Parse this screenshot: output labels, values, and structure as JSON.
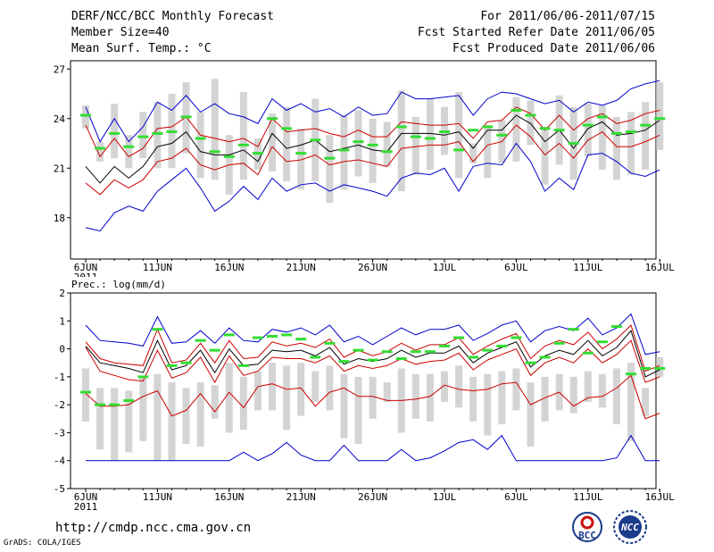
{
  "header": {
    "title": "DERF/NCC/BCC Monthly Forecast",
    "member_size": "Member Size=40",
    "variable": "Mean Surf. Temp.: °C",
    "period": "For 2011/06/06-2011/07/15",
    "start_date": "Fcst Started Refer Date 2011/06/05",
    "produced_date": "Fcst Produced Date 2011/06/06"
  },
  "footer": {
    "url": "http://cmdp.ncc.cma.gov.cn",
    "credit": "GrADS: COLA/IGES",
    "logo_left": "BCC",
    "logo_right": "NCC"
  },
  "colors": {
    "envelope": "#0000cc",
    "spread": "#cc0000",
    "mean": "#000000",
    "obs": "#33dd33",
    "bar": "#d4d4d4"
  },
  "chart_data": [
    {
      "id": "temp",
      "type": "line",
      "title": "Mean Surf. Temp.: °C",
      "ylim": [
        15.5,
        27.5
      ],
      "yticks": [
        18,
        21,
        24,
        27
      ],
      "x_ticks": [
        {
          "day": 0,
          "label": "6JUN"
        },
        {
          "day": 5,
          "label": "11JUN"
        },
        {
          "day": 10,
          "label": "16JUN"
        },
        {
          "day": 15,
          "label": "21JUN"
        },
        {
          "day": 20,
          "label": "26JUN"
        },
        {
          "day": 25,
          "label": "1JUL"
        },
        {
          "day": 30,
          "label": "6JUL"
        },
        {
          "day": 35,
          "label": "11JUL"
        },
        {
          "day": 40,
          "label": "16JUL"
        }
      ],
      "year_label": "2011",
      "series": [
        {
          "name": "max",
          "role": "envelope",
          "values": [
            24.7,
            22.6,
            24.0,
            22.6,
            23.5,
            25.0,
            24.5,
            25.4,
            24.4,
            24.9,
            24.3,
            24.1,
            23.7,
            25.2,
            24.5,
            24.9,
            24.4,
            24.6,
            24.1,
            24.7,
            24.2,
            24.3,
            25.6,
            25.2,
            25.2,
            25.3,
            25.4,
            24.2,
            25.2,
            25.6,
            25.5,
            25.2,
            24.9,
            25.1,
            24.4,
            25.0,
            24.8,
            25.1,
            25.8,
            26.1,
            26.3
          ]
        },
        {
          "name": "upper",
          "role": "spread",
          "values": [
            23.6,
            21.7,
            22.8,
            21.7,
            22.2,
            23.4,
            23.5,
            24.1,
            23.0,
            22.8,
            22.6,
            22.8,
            22.3,
            24.0,
            23.2,
            23.3,
            23.4,
            23.1,
            22.9,
            23.3,
            22.9,
            22.9,
            23.8,
            23.7,
            23.6,
            23.6,
            23.7,
            22.8,
            23.8,
            23.9,
            24.7,
            24.3,
            23.3,
            24.2,
            23.3,
            24.0,
            24.3,
            23.7,
            23.9,
            24.3,
            24.5
          ]
        },
        {
          "name": "mean",
          "role": "mean",
          "values": [
            21.1,
            20.1,
            21.1,
            20.4,
            21.1,
            22.3,
            22.5,
            23.2,
            22.0,
            21.8,
            21.8,
            22.1,
            21.4,
            23.1,
            22.2,
            22.4,
            22.7,
            22.0,
            22.2,
            22.4,
            22.1,
            22.0,
            23.1,
            23.1,
            23.1,
            23.0,
            23.2,
            22.2,
            23.3,
            23.3,
            24.2,
            23.7,
            22.6,
            23.3,
            22.2,
            23.4,
            23.8,
            23.0,
            23.1,
            23.3,
            23.9
          ]
        },
        {
          "name": "lower",
          "role": "spread",
          "values": [
            20.1,
            19.4,
            20.3,
            19.8,
            20.3,
            21.4,
            21.6,
            22.2,
            21.2,
            20.9,
            21.2,
            21.3,
            20.6,
            22.3,
            21.4,
            21.5,
            21.8,
            21.2,
            21.4,
            21.5,
            21.3,
            21.1,
            22.2,
            22.3,
            22.4,
            22.4,
            22.6,
            21.4,
            22.4,
            22.6,
            23.6,
            22.9,
            21.8,
            22.5,
            21.6,
            22.7,
            23.2,
            22.3,
            22.3,
            22.6,
            23.0
          ]
        },
        {
          "name": "min",
          "role": "envelope",
          "values": [
            17.4,
            17.2,
            18.3,
            18.7,
            18.4,
            19.6,
            20.3,
            21.0,
            19.8,
            18.4,
            19.0,
            19.9,
            19.1,
            20.4,
            19.6,
            20.0,
            20.1,
            19.6,
            20.0,
            19.8,
            19.6,
            19.3,
            20.4,
            20.7,
            20.6,
            21.0,
            19.6,
            21.1,
            21.3,
            21.2,
            22.5,
            21.4,
            19.6,
            20.4,
            19.7,
            21.8,
            21.9,
            21.4,
            20.7,
            20.5,
            20.9
          ]
        }
      ],
      "bars": {
        "low": [
          23.4,
          21.4,
          21.6,
          21.0,
          21.6,
          21.0,
          21.0,
          21.9,
          20.4,
          20.3,
          19.4,
          20.3,
          20.9,
          20.8,
          20.2,
          19.7,
          20.2,
          18.9,
          19.7,
          20.5,
          20.1,
          21.1,
          19.6,
          20.6,
          20.9,
          21.8,
          20.4,
          21.3,
          20.4,
          21.3,
          21.4,
          22.4,
          20.0,
          21.2,
          20.3,
          21.7,
          20.9,
          20.3,
          20.6,
          20.9,
          22.1
        ],
        "high": [
          24.8,
          22.6,
          24.9,
          23.0,
          24.4,
          25.0,
          25.5,
          26.2,
          24.4,
          26.4,
          23.0,
          25.6,
          22.8,
          24.3,
          24.7,
          23.4,
          25.2,
          23.0,
          24.2,
          24.5,
          24.0,
          23.8,
          25.7,
          24.1,
          25.2,
          24.7,
          25.6,
          22.5,
          23.6,
          23.9,
          25.3,
          25.1,
          23.5,
          25.4,
          24.7,
          24.9,
          24.8,
          24.1,
          24.4,
          25.0,
          26.2
        ]
      },
      "observed": [
        24.2,
        22.2,
        23.1,
        22.3,
        22.9,
        23.1,
        23.2,
        24.1,
        22.8,
        22.0,
        21.7,
        22.4,
        21.9,
        24.0,
        23.4,
        21.9,
        22.7,
        21.6,
        22.1,
        22.6,
        22.4,
        22.0,
        23.5,
        22.9,
        22.8,
        23.2,
        22.1,
        23.3,
        23.5,
        23.0,
        24.5,
        24.2,
        23.4,
        23.3,
        22.5,
        23.6,
        24.1,
        23.1,
        23.2,
        23.6,
        24.0
      ]
    },
    {
      "id": "prec",
      "type": "line",
      "title": "Prec.: log(mm/d)",
      "ylim": [
        -5,
        2
      ],
      "yticks": [
        -5,
        -4,
        -3,
        -2,
        -1,
        0,
        1,
        2
      ],
      "x_ticks": [
        {
          "day": 0,
          "label": "6JUN"
        },
        {
          "day": 5,
          "label": "11JUN"
        },
        {
          "day": 10,
          "label": "16JUN"
        },
        {
          "day": 15,
          "label": "21JUN"
        },
        {
          "day": 20,
          "label": "26JUN"
        },
        {
          "day": 25,
          "label": "1JUL"
        },
        {
          "day": 30,
          "label": "6JUL"
        },
        {
          "day": 35,
          "label": "11JUL"
        },
        {
          "day": 40,
          "label": "16JUL"
        }
      ],
      "year_label": "2011",
      "series": [
        {
          "name": "max",
          "role": "envelope",
          "values": [
            0.85,
            0.3,
            0.25,
            0.2,
            0.1,
            1.15,
            0.2,
            0.25,
            0.65,
            0.2,
            0.75,
            0.3,
            0.25,
            0.7,
            0.6,
            0.75,
            0.5,
            0.85,
            0.25,
            0.45,
            0.15,
            0.45,
            0.75,
            0.5,
            0.7,
            0.7,
            0.85,
            0.3,
            0.55,
            0.85,
            1.0,
            0.25,
            0.65,
            0.8,
            0.65,
            1.1,
            0.5,
            0.75,
            1.25,
            -0.2,
            -0.1
          ]
        },
        {
          "name": "upper",
          "role": "spread",
          "values": [
            0.25,
            -0.35,
            -0.5,
            -0.55,
            -0.6,
            0.7,
            -0.5,
            -0.4,
            0.2,
            -0.5,
            0.3,
            -0.35,
            -0.3,
            0.25,
            0.1,
            0.2,
            0.05,
            0.35,
            -0.3,
            -0.05,
            -0.25,
            -0.1,
            0.2,
            -0.05,
            0.15,
            0.15,
            0.4,
            -0.2,
            0.1,
            0.35,
            0.55,
            -0.35,
            0.1,
            0.3,
            0.15,
            0.6,
            0.0,
            0.35,
            0.85,
            -0.8,
            -0.6
          ]
        },
        {
          "name": "mean",
          "role": "mean",
          "values": [
            0.1,
            -0.5,
            -0.6,
            -0.7,
            -0.85,
            0.3,
            -0.75,
            -0.6,
            -0.05,
            -0.85,
            0.0,
            -0.6,
            -0.55,
            -0.05,
            -0.1,
            -0.05,
            -0.25,
            0.05,
            -0.55,
            -0.35,
            -0.45,
            -0.35,
            -0.05,
            -0.3,
            -0.15,
            -0.15,
            0.1,
            -0.5,
            -0.15,
            0.05,
            0.25,
            -0.65,
            -0.25,
            -0.05,
            -0.2,
            0.3,
            -0.25,
            0.05,
            0.65,
            -1.0,
            -0.75
          ]
        },
        {
          "name": "lower",
          "role": "spread",
          "values": [
            0.05,
            -0.8,
            -0.95,
            -1.1,
            -1.15,
            -0.05,
            -1.05,
            -0.85,
            -0.3,
            -1.2,
            -0.25,
            -0.95,
            -0.8,
            -0.3,
            -0.35,
            -0.35,
            -0.5,
            -0.25,
            -0.8,
            -0.6,
            -0.7,
            -0.6,
            -0.35,
            -0.55,
            -0.45,
            -0.4,
            -0.15,
            -0.75,
            -0.4,
            -0.2,
            0.0,
            -0.95,
            -0.5,
            -0.3,
            -0.5,
            0.0,
            -0.5,
            -0.2,
            0.3,
            -1.2,
            -1.0
          ]
        },
        {
          "name": "min2",
          "role": "spread",
          "values": [
            -1.6,
            -2.05,
            -2.05,
            -2.0,
            -1.7,
            -1.5,
            -2.4,
            -2.2,
            -1.6,
            -2.25,
            -1.55,
            -2.1,
            -1.35,
            -1.25,
            -1.45,
            -1.4,
            -2.05,
            -1.55,
            -1.4,
            -1.7,
            -1.7,
            -1.85,
            -1.85,
            -1.8,
            -1.7,
            -1.3,
            -1.45,
            -1.5,
            -1.45,
            -1.25,
            -1.2,
            -2.0,
            -1.75,
            -1.55,
            -2.05,
            -1.75,
            -1.7,
            -1.4,
            -0.95,
            -2.5,
            -2.3
          ]
        },
        {
          "name": "min",
          "role": "envelope",
          "values": [
            -4.0,
            -4.0,
            -4.0,
            -4.0,
            -4.0,
            -4.0,
            -4.0,
            -4.0,
            -4.0,
            -4.0,
            -4.0,
            -3.7,
            -4.0,
            -3.75,
            -3.35,
            -3.8,
            -4.0,
            -4.0,
            -3.45,
            -4.0,
            -4.0,
            -4.0,
            -3.6,
            -4.0,
            -3.9,
            -3.65,
            -3.35,
            -3.25,
            -3.6,
            -3.1,
            -4.0,
            -4.0,
            -4.0,
            -4.0,
            -4.0,
            -4.0,
            -4.0,
            -3.9,
            -3.1,
            -4.0,
            -4.0
          ]
        }
      ],
      "bars": {
        "low": [
          -2.6,
          -3.6,
          -4.0,
          -3.7,
          -3.3,
          -4.0,
          -4.0,
          -3.4,
          -3.5,
          -2.5,
          -3.0,
          -2.9,
          -2.2,
          -2.2,
          -2.9,
          -2.4,
          -1.9,
          -2.2,
          -3.2,
          -3.4,
          -2.5,
          -1.9,
          -3.0,
          -2.5,
          -2.6,
          -1.9,
          -2.1,
          -2.6,
          -3.1,
          -2.7,
          -2.2,
          -3.5,
          -2.6,
          -2.2,
          -2.3,
          -1.9,
          -2.1,
          -2.7,
          -3.3,
          -2.4,
          -1.0
        ],
        "high": [
          -0.7,
          -1.4,
          -1.4,
          -1.5,
          -1.0,
          -0.9,
          -1.2,
          -1.4,
          -1.2,
          -1.3,
          -0.5,
          -1.0,
          -0.8,
          -0.5,
          -0.6,
          -0.5,
          -0.8,
          -0.6,
          -0.9,
          -1.0,
          -1.0,
          -1.2,
          -0.7,
          -0.9,
          -0.9,
          -0.8,
          -0.6,
          -1.0,
          -0.9,
          -0.8,
          -0.7,
          -1.2,
          -1.0,
          -0.9,
          -1.0,
          -0.8,
          -0.9,
          -0.7,
          -0.5,
          -1.4,
          -0.3
        ]
      },
      "observed": [
        -1.55,
        -2.0,
        -2.0,
        -1.85,
        -1.0,
        0.7,
        -0.6,
        -0.5,
        0.3,
        -0.05,
        0.5,
        -0.6,
        0.4,
        0.45,
        0.5,
        0.35,
        -0.3,
        0.2,
        -0.45,
        -0.05,
        -0.4,
        -0.1,
        -0.35,
        -0.1,
        -0.1,
        0.1,
        0.4,
        -0.3,
        -0.05,
        0.1,
        0.4,
        -0.5,
        -0.3,
        0.2,
        0.7,
        -0.15,
        0.25,
        0.8,
        -0.9,
        -0.7,
        -0.7
      ]
    }
  ]
}
